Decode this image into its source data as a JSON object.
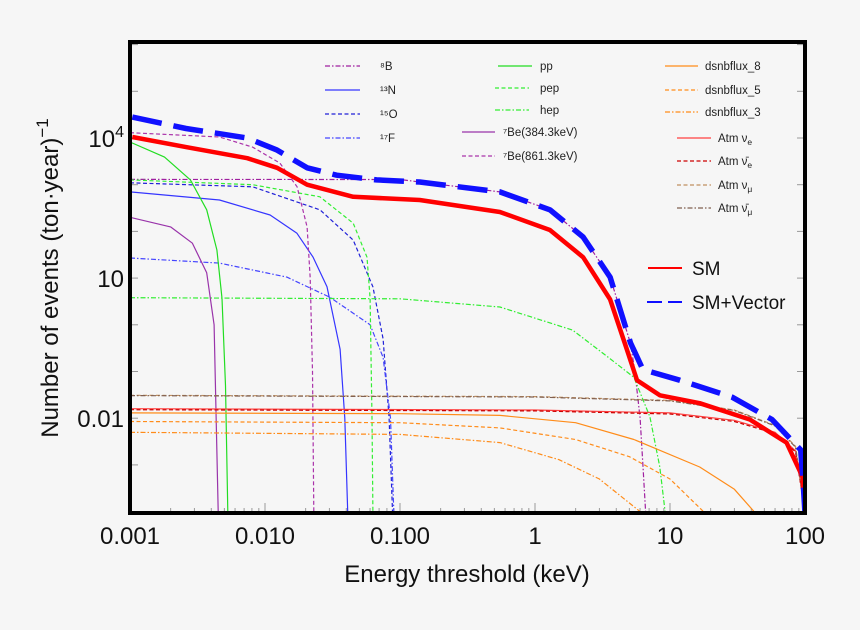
{
  "chart_data": {
    "type": "line",
    "title": "",
    "xlabel": "Energy threshold   (keV)",
    "ylabel": "Number of events   (ton·year)",
    "ylabel_sup": "−1",
    "xscale": "log",
    "yscale": "log",
    "xlim": [
      0.001,
      100
    ],
    "ylim": [
      0.0001,
      1000000
    ],
    "grid": false,
    "legend_placement": "top-right",
    "x_ticks": [
      {
        "value": 0.001,
        "label": "0.001"
      },
      {
        "value": 0.01,
        "label": "0.010"
      },
      {
        "value": 0.1,
        "label": "0.100"
      },
      {
        "value": 1,
        "label": "1"
      },
      {
        "value": 10,
        "label": "10"
      },
      {
        "value": 100,
        "label": "100"
      }
    ],
    "y_ticks": [
      {
        "value": 10000,
        "label": "10",
        "sup": "4"
      },
      {
        "value": 10,
        "label": "10",
        "sup": ""
      },
      {
        "value": 0.01,
        "label": "0.01",
        "sup": ""
      }
    ],
    "series": [
      {
        "name": "⁸B",
        "color": "#a020a0",
        "style": "dashdot",
        "points": [
          [
            0.001,
            1300
          ],
          [
            0.1,
            1290
          ],
          [
            0.55,
            700
          ],
          [
            1.29,
            290
          ],
          [
            2.27,
            76
          ],
          [
            3.6,
            10.5
          ],
          [
            5.1,
            0.4
          ],
          [
            5.5,
            0.1
          ],
          [
            6.0,
            0.01
          ],
          [
            6.3,
            0.001
          ],
          [
            6.6,
            0.0001
          ]
        ]
      },
      {
        "name": "¹³N",
        "color": "#3535ff",
        "style": "solid",
        "points": [
          [
            0.001,
            700
          ],
          [
            0.0046,
            470
          ],
          [
            0.0109,
            225
          ],
          [
            0.0172,
            92
          ],
          [
            0.0227,
            28
          ],
          [
            0.0288,
            6.5
          ],
          [
            0.036,
            0.3
          ],
          [
            0.039,
            0.01
          ],
          [
            0.041,
            0.0001
          ]
        ]
      },
      {
        "name": "¹⁵O",
        "color": "#2020d8",
        "style": "dashed",
        "points": [
          [
            0.001,
            1100
          ],
          [
            0.0081,
            900
          ],
          [
            0.0255,
            290
          ],
          [
            0.045,
            65
          ],
          [
            0.063,
            6.5
          ],
          [
            0.075,
            0.5
          ],
          [
            0.083,
            0.01
          ],
          [
            0.088,
            0.0001
          ]
        ]
      },
      {
        "name": "¹⁷F",
        "color": "#4545ff",
        "style": "dashdot",
        "points": [
          [
            0.001,
            27
          ],
          [
            0.0046,
            21
          ],
          [
            0.0145,
            10.5
          ],
          [
            0.0302,
            3.9
          ],
          [
            0.06,
            1
          ],
          [
            0.075,
            0.2
          ],
          [
            0.085,
            0.01
          ],
          [
            0.09,
            0.0001
          ]
        ]
      },
      {
        "name": "pp",
        "color": "#22dd22",
        "style": "solid",
        "points": [
          [
            0.001,
            8200
          ],
          [
            0.0018,
            3900
          ],
          [
            0.0028,
            1270
          ],
          [
            0.0037,
            290
          ],
          [
            0.0044,
            40
          ],
          [
            0.0048,
            3.7
          ],
          [
            0.0051,
            0.05
          ],
          [
            0.0053,
            0.0001
          ]
        ]
      },
      {
        "name": "pep",
        "color": "#33ee33",
        "style": "dashed",
        "points": [
          [
            0.001,
            1270
          ],
          [
            0.0081,
            1000
          ],
          [
            0.0255,
            550
          ],
          [
            0.045,
            150
          ],
          [
            0.057,
            28
          ],
          [
            0.06,
            3.7
          ],
          [
            0.062,
            0.01
          ],
          [
            0.063,
            0.0001
          ]
        ]
      },
      {
        "name": "hep",
        "color": "#33ee33",
        "style": "dashdot",
        "points": [
          [
            0.001,
            3.8
          ],
          [
            0.1,
            3.6
          ],
          [
            0.55,
            2.4
          ],
          [
            1.9,
            0.77
          ],
          [
            3.5,
            0.2
          ],
          [
            5.4,
            0.075
          ],
          [
            7.1,
            0.0107
          ],
          [
            8.4,
            0.0009
          ],
          [
            9.2,
            0.0001
          ]
        ]
      },
      {
        "name": "⁷Be(384.3keV)",
        "color": "#9933aa",
        "style": "solid",
        "points": [
          [
            0.001,
            200
          ],
          [
            0.002,
            125
          ],
          [
            0.0029,
            56
          ],
          [
            0.0037,
            13
          ],
          [
            0.0042,
            1
          ],
          [
            0.0045,
            0.0001
          ]
        ]
      },
      {
        "name": "⁷Be(861.3keV)",
        "color": "#aa33aa",
        "style": "dashed",
        "points": [
          [
            0.001,
            13000
          ],
          [
            0.0046,
            10500
          ],
          [
            0.0081,
            6400
          ],
          [
            0.0129,
            2900
          ],
          [
            0.0173,
            900
          ],
          [
            0.0205,
            125
          ],
          [
            0.0216,
            10
          ],
          [
            0.0225,
            0.1
          ],
          [
            0.023,
            0.0001
          ]
        ]
      },
      {
        "name": "dsnbflux_8",
        "color": "#ff8c1a",
        "style": "solid",
        "points": [
          [
            0.001,
            0.013
          ],
          [
            0.1,
            0.0125
          ],
          [
            0.55,
            0.0115
          ],
          [
            2,
            0.008
          ],
          [
            5.4,
            0.0035
          ],
          [
            16.6,
            0.0009
          ],
          [
            30,
            0.0003
          ],
          [
            42,
            0.0001
          ]
        ]
      },
      {
        "name": "dsnbflux_5",
        "color": "#ff8c1a",
        "style": "dashed",
        "points": [
          [
            0.001,
            0.0085
          ],
          [
            0.1,
            0.008
          ],
          [
            0.55,
            0.0062
          ],
          [
            2,
            0.0035
          ],
          [
            5,
            0.0015
          ],
          [
            10,
            0.0005
          ],
          [
            17.7,
            0.0001
          ]
        ]
      },
      {
        "name": "dsnbflux_3",
        "color": "#ff8c1a",
        "style": "dashdot",
        "points": [
          [
            0.001,
            0.005
          ],
          [
            0.1,
            0.0045
          ],
          [
            0.55,
            0.003
          ],
          [
            1.5,
            0.0013
          ],
          [
            3,
            0.0005
          ],
          [
            6,
            0.0001
          ]
        ]
      },
      {
        "name": "Atm ν",
        "sub": "e",
        "color": "#ff4040",
        "style": "solid",
        "points": [
          [
            0.001,
            0.016
          ],
          [
            1,
            0.015
          ],
          [
            10,
            0.013
          ],
          [
            30,
            0.009
          ],
          [
            60,
            0.005
          ],
          [
            85,
            0.002
          ],
          [
            100,
            0.0001
          ]
        ]
      },
      {
        "name": "Atm ν̄",
        "sub": "e",
        "color": "#cc0000",
        "style": "dashed",
        "points": [
          [
            0.001,
            0.0152
          ],
          [
            1,
            0.0143
          ],
          [
            10,
            0.0123
          ],
          [
            30,
            0.0085
          ],
          [
            60,
            0.0047
          ],
          [
            85,
            0.0019
          ],
          [
            100,
            0.0001
          ]
        ]
      },
      {
        "name": "Atm ν",
        "sub": "μ",
        "color": "#c09060",
        "style": "dashed",
        "points": [
          [
            0.001,
            0.031
          ],
          [
            1,
            0.029
          ],
          [
            10,
            0.024
          ],
          [
            30,
            0.015
          ],
          [
            60,
            0.007
          ],
          [
            85,
            0.0025
          ],
          [
            100,
            0.0001
          ]
        ]
      },
      {
        "name": "Atm ν̄",
        "sub": "μ",
        "color": "#806050",
        "style": "dashdot",
        "points": [
          [
            0.001,
            0.0305
          ],
          [
            1,
            0.0285
          ],
          [
            10,
            0.0235
          ],
          [
            30,
            0.0147
          ],
          [
            60,
            0.0068
          ],
          [
            85,
            0.0024
          ],
          [
            100,
            0.0001
          ]
        ]
      },
      {
        "name": "SM",
        "color": "#ff0000",
        "style": "thick",
        "points": [
          [
            0.00104,
            10500
          ],
          [
            0.0026,
            6400
          ],
          [
            0.0074,
            3700
          ],
          [
            0.0123,
            2300
          ],
          [
            0.0205,
            1000
          ],
          [
            0.045,
            550
          ],
          [
            0.14,
            470
          ],
          [
            0.55,
            260
          ],
          [
            1.29,
            107
          ],
          [
            2.27,
            28
          ],
          [
            3.6,
            3.5
          ],
          [
            4.8,
            0.29
          ],
          [
            5.7,
            0.065
          ],
          [
            8.4,
            0.031
          ],
          [
            16.6,
            0.021
          ],
          [
            39,
            0.0094
          ],
          [
            73,
            0.003
          ],
          [
            96,
            0.00055
          ],
          [
            100,
            9e-05
          ]
        ]
      },
      {
        "name": "SM+Vector",
        "color": "#1010ff",
        "style": "thickdash",
        "points": [
          [
            0.00104,
            28000
          ],
          [
            0.0026,
            16000
          ],
          [
            0.0074,
            10000
          ],
          [
            0.0123,
            5500
          ],
          [
            0.0205,
            2300
          ],
          [
            0.034,
            1600
          ],
          [
            0.067,
            1270
          ],
          [
            0.14,
            1140
          ],
          [
            0.55,
            700
          ],
          [
            1.29,
            290
          ],
          [
            2.27,
            76
          ],
          [
            3.6,
            10.5
          ],
          [
            5.1,
            0.41
          ],
          [
            6.3,
            0.11
          ],
          [
            11.8,
            0.065
          ],
          [
            29,
            0.028
          ],
          [
            57,
            0.0094
          ],
          [
            93,
            0.0021
          ],
          [
            97,
            0.0004
          ],
          [
            100,
            9e-05
          ]
        ]
      }
    ]
  }
}
